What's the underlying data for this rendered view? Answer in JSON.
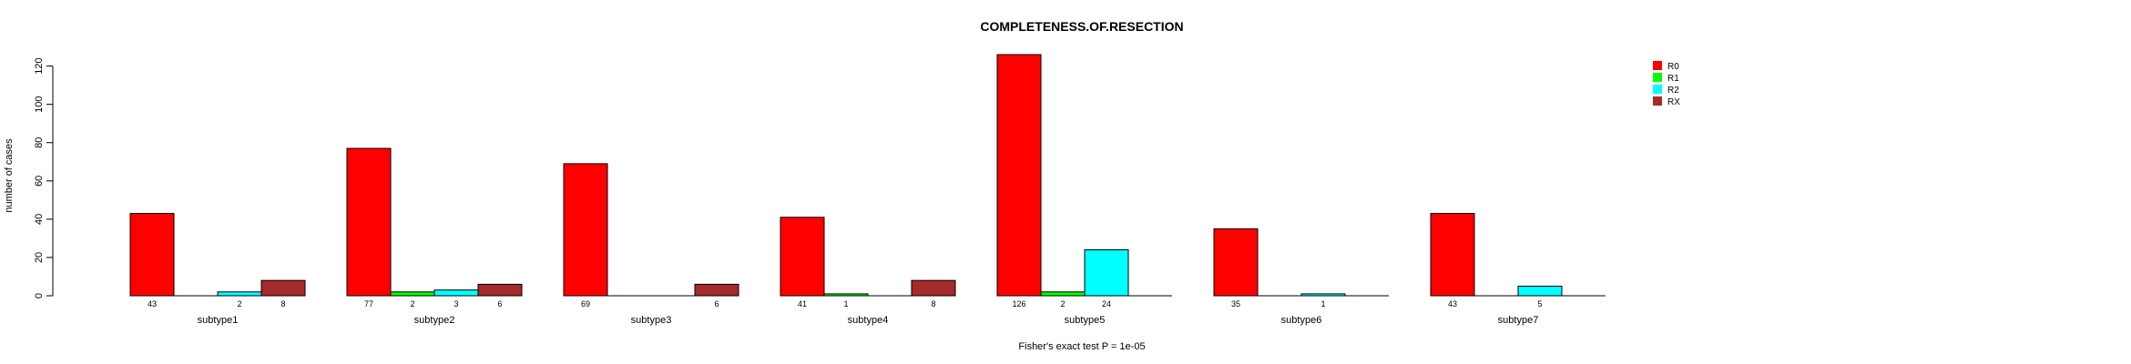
{
  "chart_data": {
    "type": "bar",
    "title": "COMPLETENESS.OF.RESECTION",
    "ylabel": "number of cases",
    "xlabel": "",
    "ylim": [
      0,
      126
    ],
    "yticks": [
      0,
      20,
      40,
      60,
      80,
      100,
      120
    ],
    "ytick_labels": [
      "0",
      "20",
      "40",
      "60",
      "80",
      "100",
      "120"
    ],
    "categories": [
      "subtype1",
      "subtype2",
      "subtype3",
      "subtype4",
      "subtype5",
      "subtype6",
      "subtype7"
    ],
    "series": [
      {
        "name": "R0",
        "color": "#ff0000",
        "values": [
          43,
          77,
          69,
          41,
          126,
          35,
          43
        ]
      },
      {
        "name": "R1",
        "color": "#00ff00",
        "values": [
          0,
          2,
          0,
          1,
          2,
          0,
          0
        ]
      },
      {
        "name": "R2",
        "color": "#00ffff",
        "values": [
          2,
          3,
          0,
          0,
          24,
          1,
          5
        ]
      },
      {
        "name": "RX",
        "color": "#a52a2a",
        "values": [
          8,
          6,
          6,
          8,
          0,
          0,
          0
        ]
      }
    ],
    "legend": {
      "position": "top-right"
    },
    "footnote": "Fisher's exact test P = 1e-05",
    "grid": false
  }
}
